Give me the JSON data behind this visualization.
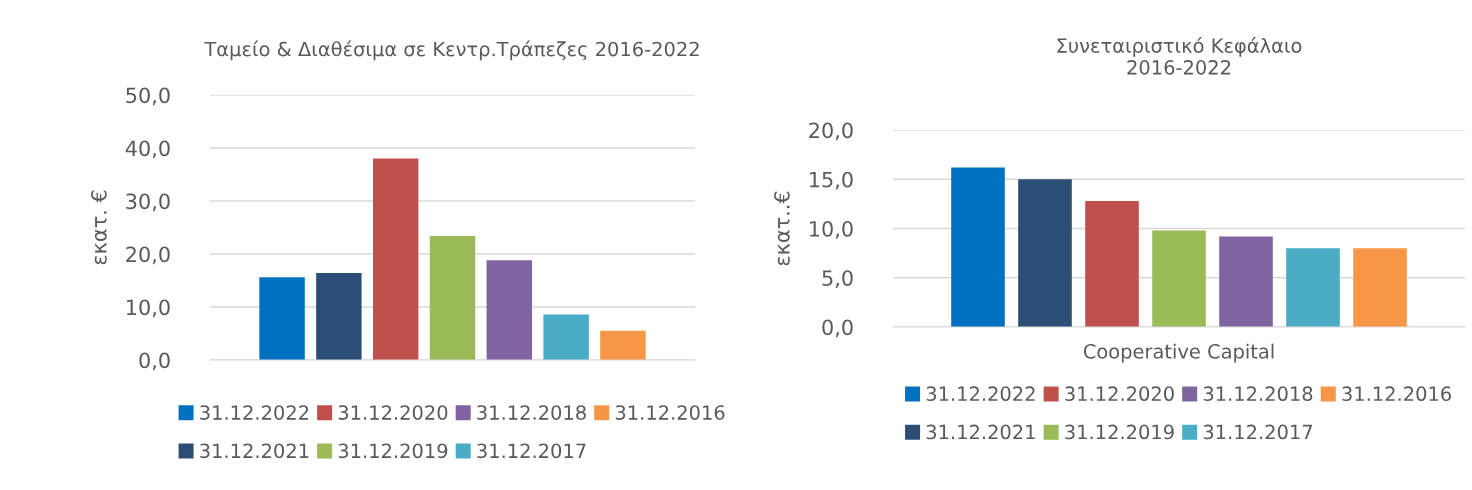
{
  "chart_data": [
    {
      "type": "bar",
      "title": "Ταμείο & Διαθέσιμα σε Κεντρ.Τράπεζες 2016-2022",
      "ylabel": "εκατ. €",
      "categories": [
        null
      ],
      "series": [
        {
          "name": "31.12.2022",
          "color": "#0070c0",
          "values": [
            15.6
          ]
        },
        {
          "name": "31.12.2021",
          "color": "#2c4d75",
          "values": [
            16.4
          ]
        },
        {
          "name": "31.12.2020",
          "color": "#c0504d",
          "values": [
            38.0
          ]
        },
        {
          "name": "31.12.2019",
          "color": "#9bbb59",
          "values": [
            23.4
          ]
        },
        {
          "name": "31.12.2018",
          "color": "#8064a2",
          "values": [
            18.8
          ]
        },
        {
          "name": "31.12.2017",
          "color": "#4bacc6",
          "values": [
            8.6
          ]
        },
        {
          "name": "31.12.2016",
          "color": "#f79646",
          "values": [
            5.5
          ]
        }
      ],
      "ylim": [
        0,
        50
      ],
      "yticks": [
        {
          "value": 0,
          "label": "0,0"
        },
        {
          "value": 10,
          "label": "10,0"
        },
        {
          "value": 20,
          "label": "20,0"
        },
        {
          "value": 30,
          "label": "30,0"
        },
        {
          "value": 40,
          "label": "40,0"
        },
        {
          "value": 50,
          "label": "50,0"
        }
      ],
      "grid": "y",
      "legend": "bottom"
    },
    {
      "type": "bar",
      "title": "Συνεταιριστικό Κεφάλαιο\n2016-2022",
      "ylabel": "εκατ..€",
      "categories": [
        "Cooperative Capital"
      ],
      "series": [
        {
          "name": "31.12.2022",
          "color": "#0070c0",
          "values": [
            16.2
          ]
        },
        {
          "name": "31.12.2021",
          "color": "#2c4d75",
          "values": [
            15.0
          ]
        },
        {
          "name": "31.12.2020",
          "color": "#c0504d",
          "values": [
            12.8
          ]
        },
        {
          "name": "31.12.2019",
          "color": "#9bbb59",
          "values": [
            9.8
          ]
        },
        {
          "name": "31.12.2018",
          "color": "#8064a2",
          "values": [
            9.2
          ]
        },
        {
          "name": "31.12.2017",
          "color": "#4bacc6",
          "values": [
            8.0
          ]
        },
        {
          "name": "31.12.2016",
          "color": "#f79646",
          "values": [
            8.0
          ]
        }
      ],
      "ylim": [
        0,
        20
      ],
      "yticks": [
        {
          "value": 0,
          "label": "0,0"
        },
        {
          "value": 5,
          "label": "5,0"
        },
        {
          "value": 10,
          "label": "10,0"
        },
        {
          "value": 15,
          "label": "15,0"
        },
        {
          "value": 20,
          "label": "20,0"
        }
      ],
      "grid": "y",
      "legend": "bottom"
    }
  ]
}
